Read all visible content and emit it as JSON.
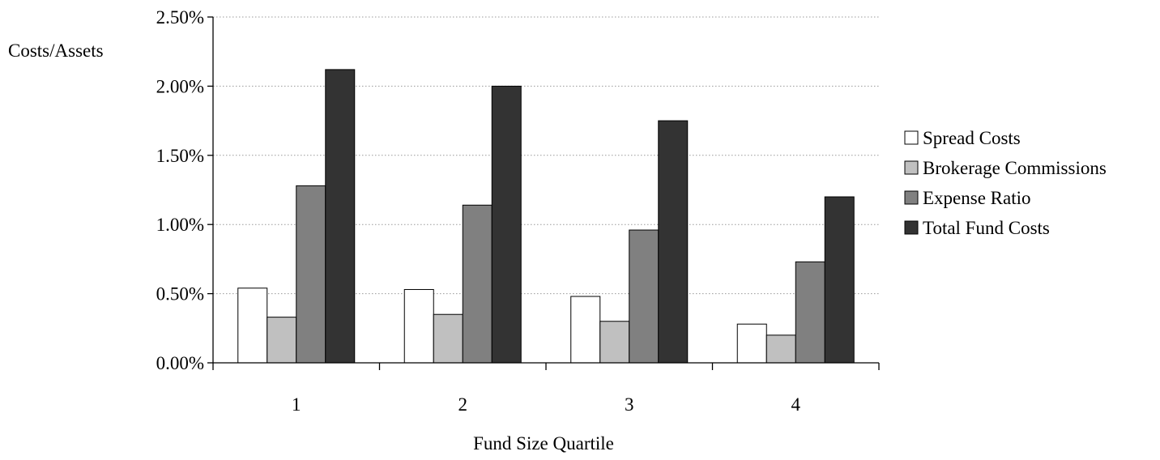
{
  "chart_data": {
    "type": "bar",
    "title": "",
    "ylabel": "Costs/Assets",
    "xlabel": "Fund Size Quartile",
    "categories": [
      "1",
      "2",
      "3",
      "4"
    ],
    "ylim": [
      0,
      0.025
    ],
    "yticks": [
      0,
      0.005,
      0.01,
      0.015,
      0.02,
      0.025
    ],
    "ytick_labels": [
      "0.00%",
      "0.50%",
      "1.00%",
      "1.50%",
      "2.00%",
      "2.50%"
    ],
    "grid": "horizontal dotted",
    "legend_position": "right",
    "series": [
      {
        "name": "Spread Costs",
        "color": "#ffffff",
        "values": [
          0.0054,
          0.0053,
          0.0048,
          0.0028
        ]
      },
      {
        "name": "Brokerage Commissions",
        "color": "#c0c0c0",
        "values": [
          0.0033,
          0.0035,
          0.003,
          0.002
        ]
      },
      {
        "name": "Expense Ratio",
        "color": "#808080",
        "values": [
          0.0128,
          0.0114,
          0.0096,
          0.0073
        ]
      },
      {
        "name": "Total Fund Costs",
        "color": "#333333",
        "values": [
          0.0212,
          0.02,
          0.0175,
          0.012
        ]
      }
    ]
  }
}
